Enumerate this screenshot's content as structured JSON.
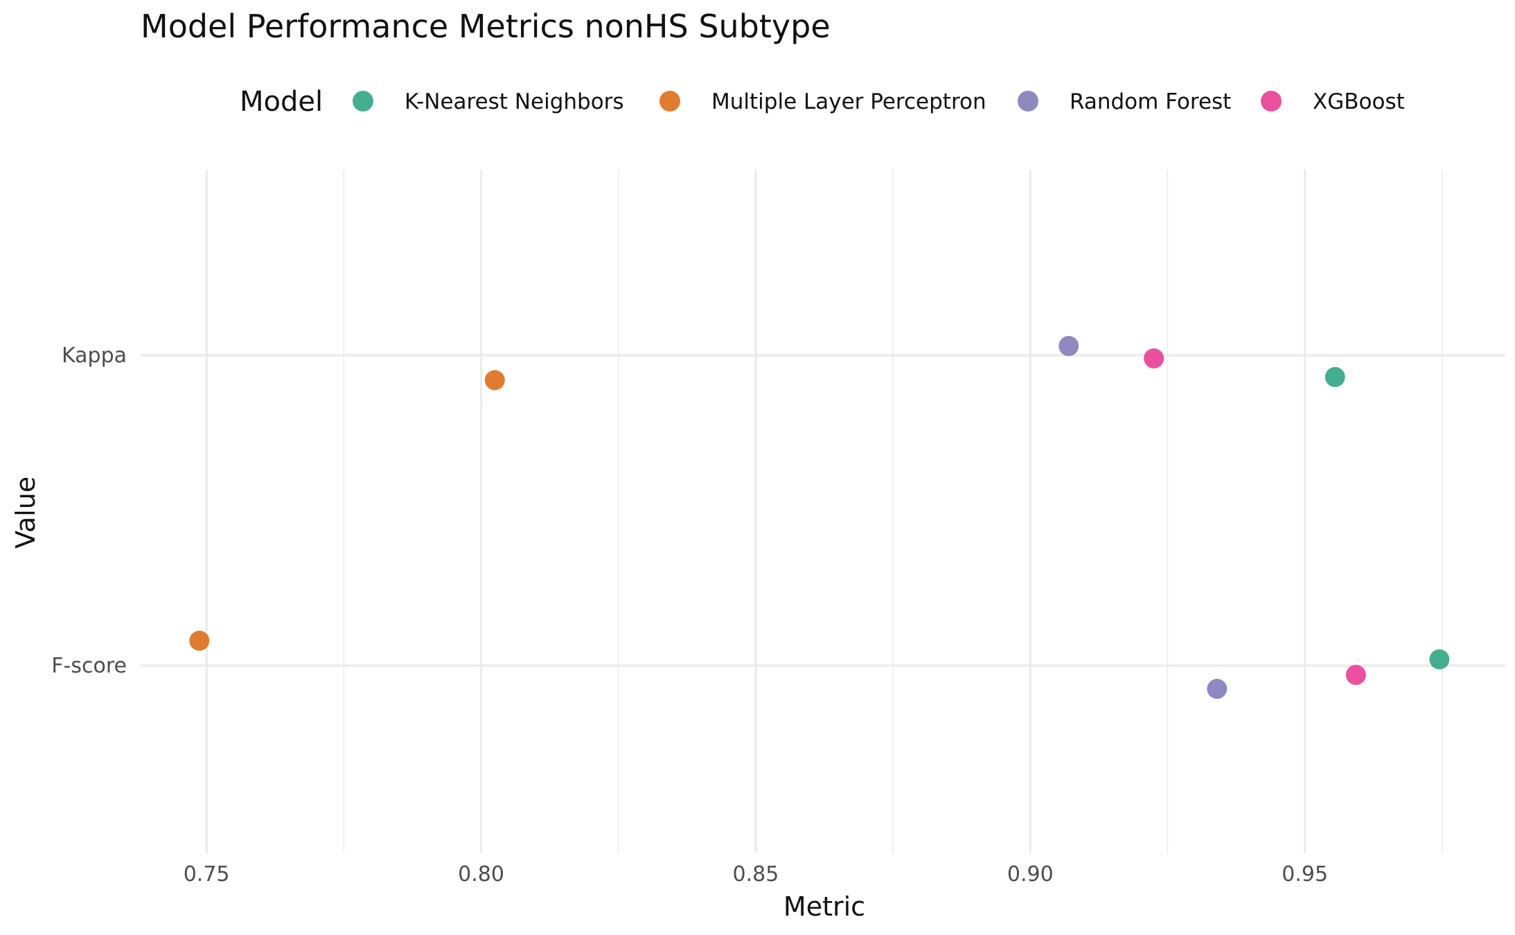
{
  "chart_data": {
    "type": "scatter",
    "title": "Model Performance Metrics nonHS Subtype",
    "xlabel": "Metric",
    "ylabel": "Value",
    "xlim": [
      0.738,
      0.9865
    ],
    "x_ticks": [
      0.75,
      0.8,
      0.85,
      0.9,
      0.95
    ],
    "x_tick_labels": [
      "0.75",
      "0.80",
      "0.85",
      "0.90",
      "0.95"
    ],
    "categories": [
      "Kappa",
      "F-score"
    ],
    "grid": true,
    "legend": {
      "title": "Model",
      "position": "top"
    },
    "series": [
      {
        "name": "K-Nearest Neighbors",
        "color": "#1b9e77",
        "points": [
          {
            "category": "Kappa",
            "x": 0.9555,
            "jitter": -0.07
          },
          {
            "category": "F-score",
            "x": 0.9745,
            "jitter": 0.02
          }
        ]
      },
      {
        "name": "Multiple Layer Perceptron",
        "color": "#d95f02",
        "points": [
          {
            "category": "Kappa",
            "x": 0.8025,
            "jitter": -0.08
          },
          {
            "category": "F-score",
            "x": 0.7487,
            "jitter": 0.08
          }
        ]
      },
      {
        "name": "Random Forest",
        "color": "#7570b3",
        "points": [
          {
            "category": "Kappa",
            "x": 0.907,
            "jitter": 0.03
          },
          {
            "category": "F-score",
            "x": 0.934,
            "jitter": -0.075
          }
        ]
      },
      {
        "name": "XGBoost",
        "color": "#e7298a",
        "points": [
          {
            "category": "Kappa",
            "x": 0.9225,
            "jitter": -0.01
          },
          {
            "category": "F-score",
            "x": 0.9593,
            "jitter": -0.03
          }
        ]
      }
    ]
  }
}
